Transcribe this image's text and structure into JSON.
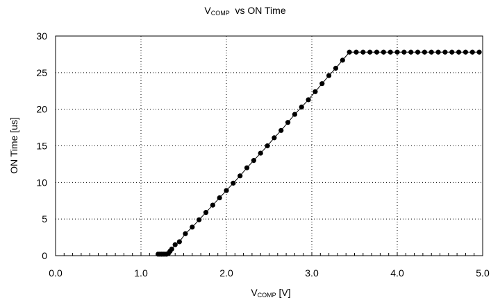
{
  "chart_data": {
    "type": "line",
    "title": {
      "main": "V",
      "sub": "COMP",
      "rest": "  vs ON Time"
    },
    "xlabel": {
      "main": "V",
      "sub": "COMP",
      "rest": " [V]"
    },
    "ylabel": "ON Time [us]",
    "xlim": [
      0.0,
      5.0
    ],
    "ylim": [
      0,
      30
    ],
    "xticks": [
      "0.0",
      "1.0",
      "2.0",
      "3.0",
      "4.0",
      "5.0"
    ],
    "yticks": [
      "0",
      "5",
      "10",
      "15",
      "20",
      "25",
      "30"
    ],
    "grid": true,
    "legend": "none",
    "line_color": "#000000",
    "marker_color": "#000000",
    "series": [
      {
        "x": [
          1.2,
          1.22,
          1.24,
          1.26,
          1.28,
          1.3,
          1.32,
          1.34,
          1.36,
          1.4,
          1.45,
          1.52,
          1.6,
          1.68,
          1.76,
          1.84,
          1.92,
          2.0,
          2.08,
          2.16,
          2.24,
          2.32,
          2.4,
          2.48,
          2.56,
          2.64,
          2.72,
          2.8,
          2.88,
          2.96,
          3.04,
          3.12,
          3.2,
          3.28,
          3.36,
          3.44,
          3.52,
          3.6,
          3.68,
          3.76,
          3.84,
          3.92,
          4.0,
          4.08,
          4.16,
          4.24,
          4.32,
          4.4,
          4.48,
          4.56,
          4.64,
          4.72,
          4.8,
          4.88,
          4.96
        ],
        "y": [
          0.2,
          0.2,
          0.2,
          0.2,
          0.2,
          0.2,
          0.3,
          0.6,
          0.9,
          1.5,
          1.9,
          3.0,
          3.9,
          4.9,
          5.9,
          6.9,
          7.9,
          8.9,
          9.9,
          10.9,
          12.0,
          13.0,
          14.0,
          15.0,
          16.1,
          17.1,
          18.2,
          19.3,
          20.3,
          21.3,
          22.4,
          23.5,
          24.6,
          25.6,
          26.7,
          27.8,
          27.8,
          27.8,
          27.8,
          27.8,
          27.8,
          27.8,
          27.8,
          27.8,
          27.8,
          27.8,
          27.8,
          27.8,
          27.8,
          27.8,
          27.8,
          27.8,
          27.8,
          27.8,
          27.8
        ]
      }
    ]
  }
}
